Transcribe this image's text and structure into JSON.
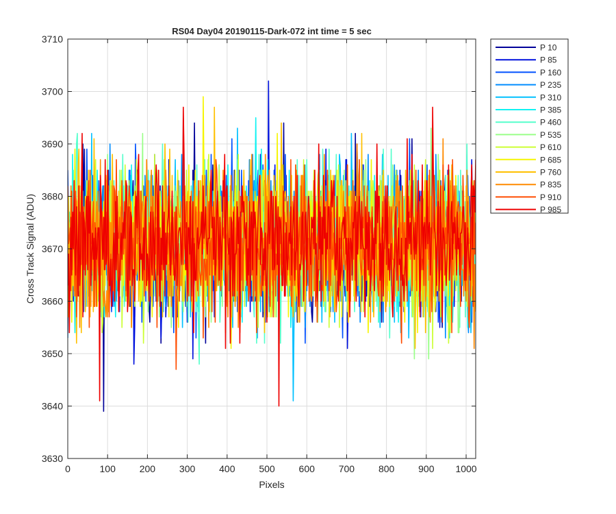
{
  "chart_data": {
    "type": "line",
    "title": "RS04 Day04 20190115-Dark-072 int time = 5 sec",
    "xlabel": "Pixels",
    "ylabel": "Cross Track Signal (ADU)",
    "xlim": [
      0,
      1024
    ],
    "ylim": [
      3630,
      3710
    ],
    "x_ticks": [
      0,
      100,
      200,
      300,
      400,
      500,
      600,
      700,
      800,
      900,
      1000
    ],
    "y_ticks": [
      3630,
      3640,
      3650,
      3660,
      3670,
      3680,
      3690,
      3700,
      3710
    ],
    "grid": true,
    "legend_position": "outside-right",
    "n_pixels": 1024,
    "noise_model": {
      "mean": 3671,
      "std": 7,
      "sample_step": 2
    },
    "series": [
      {
        "name": "P 10",
        "color": "#000099"
      },
      {
        "name": "P 85",
        "color": "#0011dd"
      },
      {
        "name": "P 160",
        "color": "#0050ff"
      },
      {
        "name": "P 235",
        "color": "#008cff"
      },
      {
        "name": "P 310",
        "color": "#00c0ff"
      },
      {
        "name": "P 385",
        "color": "#11f2f2"
      },
      {
        "name": "P 460",
        "color": "#55ffcc"
      },
      {
        "name": "P 535",
        "color": "#99ff88"
      },
      {
        "name": "P 610",
        "color": "#ccff33"
      },
      {
        "name": "P 685",
        "color": "#f5f500"
      },
      {
        "name": "P 760",
        "color": "#ffc000"
      },
      {
        "name": "P 835",
        "color": "#ff8a00"
      },
      {
        "name": "P 910",
        "color": "#ff4c00"
      },
      {
        "name": "P 985",
        "color": "#ee0000"
      }
    ],
    "noted_extremes": [
      {
        "series": "P 85",
        "x": 503,
        "y": 3702
      },
      {
        "series": "P 10",
        "x": 90,
        "y": 3639
      },
      {
        "series": "P 985",
        "x": 530,
        "y": 3640
      },
      {
        "series": "P 985",
        "x": 80,
        "y": 3641
      },
      {
        "series": "P 310",
        "x": 565,
        "y": 3641
      },
      {
        "series": "P 985",
        "x": 290,
        "y": 3697
      },
      {
        "series": "P 685",
        "x": 340,
        "y": 3699
      }
    ]
  }
}
